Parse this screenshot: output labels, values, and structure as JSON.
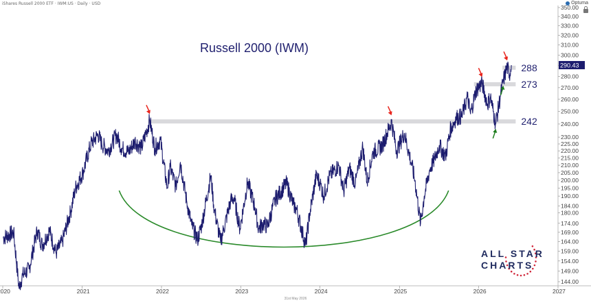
{
  "header": {
    "text": "iShares Russell 2000 ETF · IWM:US · Daily · USD",
    "brand": "Optuma"
  },
  "footer_date": "31st May 2026",
  "logo": {
    "line1": "ALL STAR",
    "line2": "CHARTS"
  },
  "colors": {
    "price_line": "#1c1c6e",
    "level_band": "#d9d9dc",
    "arrow_red": "#e8231b",
    "arrow_green": "#1e7d1e",
    "arc": "#2a8a2a",
    "axis_text": "#444444",
    "price_badge_bg": "#1c1c6e"
  },
  "chart_data": {
    "type": "line",
    "title": "Russell 2000 (IWM)",
    "xlabel": "",
    "ylabel": "",
    "x_ticks": [
      "2020",
      "2021",
      "2022",
      "2023",
      "2024",
      "2025",
      "2026",
      "2027"
    ],
    "y_ticks": [
      144,
      149,
      154,
      159,
      164,
      169,
      174,
      180,
      184,
      190,
      195,
      200,
      205,
      210,
      215,
      220,
      225,
      230,
      240,
      250,
      260,
      270,
      280,
      290,
      300,
      310,
      320,
      330,
      340,
      350
    ],
    "y_tick_labels": [
      "144.00",
      "149.00",
      "154.00",
      "159.00",
      "164.00",
      "169.00",
      "174.00",
      "180.00",
      "184.00",
      "190.00",
      "195.00",
      "200.00",
      "205.00",
      "210.00",
      "215.00",
      "220.00",
      "225.00",
      "230.00",
      "240.00",
      "250.00",
      "260.00",
      "270.00",
      "280.00",
      "290.00",
      "300.00",
      "310.00",
      "320.00",
      "330.00",
      "340.00",
      "350.00"
    ],
    "ylim": [
      144,
      350
    ],
    "y_scale": "log",
    "last_price": "290.43",
    "series": [
      {
        "values": [
          [
            "2020-01-02",
            166
          ],
          [
            "2020-02-20",
            169
          ],
          [
            "2020-03-16",
            141
          ],
          [
            "2020-04-01",
            147
          ],
          [
            "2020-05-01",
            150
          ],
          [
            "2020-06-08",
            170
          ],
          [
            "2020-07-01",
            162
          ],
          [
            "2020-08-03",
            170
          ],
          [
            "2020-09-02",
            158
          ],
          [
            "2020-10-01",
            164
          ],
          [
            "2020-11-09",
            181
          ],
          [
            "2020-12-01",
            195
          ],
          [
            "2021-01-04",
            205
          ],
          [
            "2021-02-10",
            225
          ],
          [
            "2021-03-15",
            232
          ],
          [
            "2021-04-01",
            225
          ],
          [
            "2021-05-01",
            220
          ],
          [
            "2021-06-08",
            232
          ],
          [
            "2021-07-01",
            222
          ],
          [
            "2021-08-02",
            219
          ],
          [
            "2021-09-01",
            227
          ],
          [
            "2021-10-01",
            222
          ],
          [
            "2021-11-08",
            243
          ],
          [
            "2021-12-01",
            222
          ],
          [
            "2021-12-27",
            228
          ],
          [
            "2022-01-27",
            195
          ],
          [
            "2022-02-10",
            209
          ],
          [
            "2022-03-08",
            196
          ],
          [
            "2022-03-29",
            212
          ],
          [
            "2022-04-28",
            186
          ],
          [
            "2022-05-20",
            173
          ],
          [
            "2022-06-16",
            165
          ],
          [
            "2022-07-05",
            173
          ],
          [
            "2022-08-16",
            203
          ],
          [
            "2022-09-01",
            182
          ],
          [
            "2022-09-30",
            164
          ],
          [
            "2022-10-13",
            170
          ],
          [
            "2022-11-15",
            187
          ],
          [
            "2022-12-01",
            189
          ],
          [
            "2022-12-28",
            171
          ],
          [
            "2023-02-02",
            199
          ],
          [
            "2023-03-08",
            183
          ],
          [
            "2023-03-24",
            171
          ],
          [
            "2023-04-15",
            174
          ],
          [
            "2023-05-04",
            172
          ],
          [
            "2023-06-08",
            188
          ],
          [
            "2023-07-31",
            198
          ],
          [
            "2023-08-31",
            185
          ],
          [
            "2023-09-15",
            182
          ],
          [
            "2023-10-27",
            162
          ],
          [
            "2023-11-15",
            180
          ],
          [
            "2023-12-15",
            203
          ],
          [
            "2024-01-02",
            198
          ],
          [
            "2024-01-18",
            190
          ],
          [
            "2024-02-15",
            203
          ],
          [
            "2024-03-28",
            210
          ],
          [
            "2024-04-19",
            193
          ],
          [
            "2024-05-15",
            208
          ],
          [
            "2024-06-12",
            198
          ],
          [
            "2024-07-16",
            223
          ],
          [
            "2024-08-05",
            199
          ],
          [
            "2024-09-01",
            219
          ],
          [
            "2024-10-15",
            224
          ],
          [
            "2024-11-25",
            242
          ],
          [
            "2024-12-19",
            220
          ],
          [
            "2025-01-23",
            233
          ],
          [
            "2025-02-27",
            210
          ],
          [
            "2025-03-13",
            200
          ],
          [
            "2025-04-08",
            174
          ],
          [
            "2025-04-25",
            190
          ],
          [
            "2025-05-20",
            207
          ],
          [
            "2025-06-11",
            214
          ],
          [
            "2025-07-03",
            224
          ],
          [
            "2025-08-01",
            216
          ],
          [
            "2025-08-22",
            235
          ],
          [
            "2025-09-19",
            245
          ],
          [
            "2025-10-15",
            246
          ],
          [
            "2025-11-10",
            262
          ],
          [
            "2025-11-24",
            248
          ],
          [
            "2025-12-20",
            268
          ],
          [
            "2026-01-16",
            274
          ],
          [
            "2026-02-10",
            256
          ],
          [
            "2026-02-24",
            262
          ],
          [
            "2026-03-20",
            240
          ],
          [
            "2026-04-10",
            262
          ],
          [
            "2026-04-24",
            276
          ],
          [
            "2026-05-12",
            289
          ],
          [
            "2026-05-22",
            281
          ],
          [
            "2026-05-31",
            290.43
          ]
        ]
      }
    ],
    "levels": [
      {
        "value": 288,
        "label": "288"
      },
      {
        "value": 273,
        "label": "273"
      },
      {
        "value": 242,
        "label": "242"
      }
    ],
    "arrows": [
      {
        "date": "2021-11-08",
        "value": 243,
        "direction": "down",
        "color": "red"
      },
      {
        "date": "2024-11-25",
        "value": 242,
        "direction": "down",
        "color": "red"
      },
      {
        "date": "2026-01-16",
        "value": 274,
        "direction": "down",
        "color": "red"
      },
      {
        "date": "2026-05-12",
        "value": 289,
        "direction": "down",
        "color": "red"
      },
      {
        "date": "2026-03-20",
        "value": 240,
        "direction": "up",
        "color": "green"
      },
      {
        "date": "2026-04-24",
        "value": 276,
        "direction": "up",
        "color": "green"
      }
    ],
    "grid": false,
    "legend": "none"
  }
}
